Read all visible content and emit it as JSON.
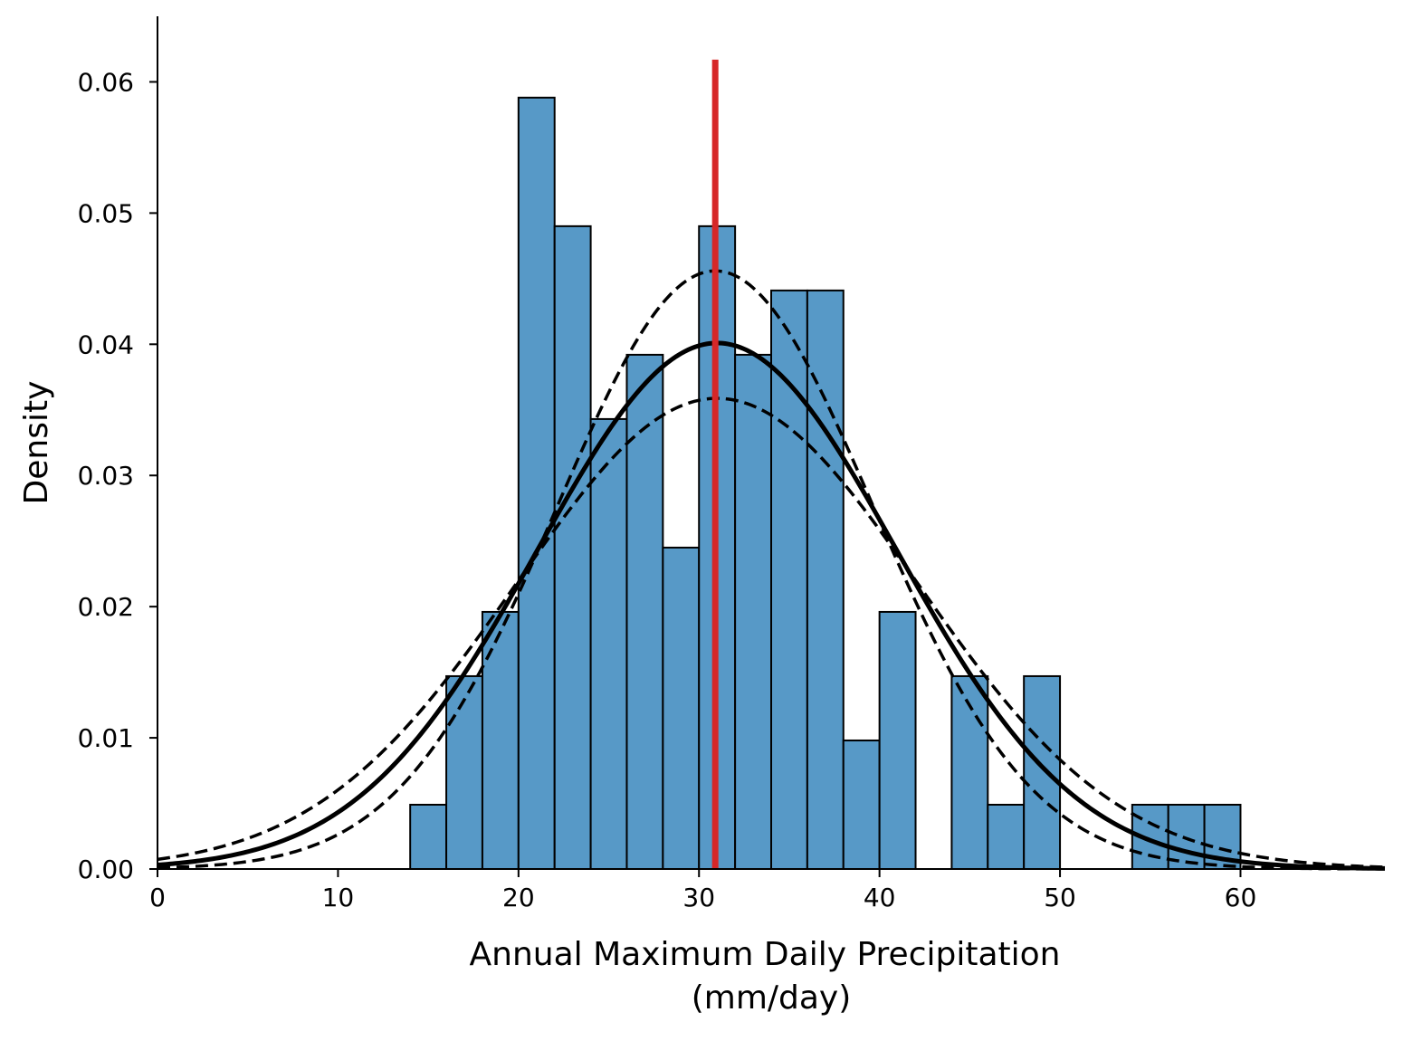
{
  "chart_data": {
    "type": "bar",
    "xlabel_line1": "Annual Maximum Daily Precipitation",
    "xlabel_line2": "(mm/day)",
    "ylabel": "Density",
    "xlim": [
      0,
      68
    ],
    "ylim": [
      0,
      0.065
    ],
    "xticks": [
      {
        "value": 0,
        "label": "0"
      },
      {
        "value": 10,
        "label": "10"
      },
      {
        "value": 20,
        "label": "20"
      },
      {
        "value": 30,
        "label": "30"
      },
      {
        "value": 40,
        "label": "40"
      },
      {
        "value": 50,
        "label": "50"
      },
      {
        "value": 60,
        "label": "60"
      }
    ],
    "yticks": [
      {
        "value": 0.0,
        "label": "0.00"
      },
      {
        "value": 0.01,
        "label": "0.01"
      },
      {
        "value": 0.02,
        "label": "0.02"
      },
      {
        "value": 0.03,
        "label": "0.03"
      },
      {
        "value": 0.04,
        "label": "0.04"
      },
      {
        "value": 0.05,
        "label": "0.05"
      },
      {
        "value": 0.06,
        "label": "0.06"
      }
    ],
    "histogram": {
      "bin_edges": [
        14,
        16,
        18,
        20,
        22,
        24,
        26,
        28,
        30,
        32,
        34,
        36,
        38,
        40,
        42,
        44,
        46,
        48,
        50,
        52,
        54,
        56,
        58,
        60
      ],
      "densities": [
        0.0049,
        0.0147,
        0.0196,
        0.0588,
        0.049,
        0.0343,
        0.0392,
        0.0245,
        0.049,
        0.0392,
        0.0441,
        0.0441,
        0.0098,
        0.0196,
        0.0,
        0.0147,
        0.0049,
        0.0147,
        0.0,
        0.0,
        0.0049,
        0.0049,
        0.0049
      ],
      "color": "#5799c7",
      "edge_color": "#000000"
    },
    "fit_curve": {
      "mean": 31.0,
      "sd": 9.95,
      "style": "solid",
      "color": "#000000"
    },
    "upper_bound_curve": {
      "mean": 30.9,
      "sd": 8.75,
      "style": "dashed",
      "color": "#000000"
    },
    "lower_bound_curve": {
      "mean": 31.0,
      "sd": 11.12,
      "style": "dashed",
      "color": "#000000"
    },
    "vertical_line": {
      "x": 30.9,
      "ymax": 0.0617,
      "color": "#d62728"
    },
    "grid": false,
    "legend": "none"
  }
}
